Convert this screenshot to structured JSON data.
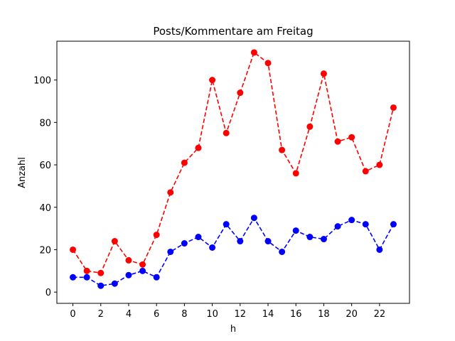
{
  "chart_data": {
    "type": "line",
    "title": "Posts/Kommentare am Freitag",
    "xlabel": "h",
    "ylabel": "Anzahl",
    "xlim": [
      -1.15,
      24.15
    ],
    "ylim": [
      -5.3,
      118.3
    ],
    "xticks": [
      0,
      2,
      4,
      6,
      8,
      10,
      12,
      14,
      16,
      18,
      20,
      22
    ],
    "yticks": [
      0,
      20,
      40,
      60,
      80,
      100
    ],
    "grid": false,
    "x": [
      0,
      1,
      2,
      3,
      4,
      5,
      6,
      7,
      8,
      9,
      10,
      11,
      12,
      13,
      14,
      15,
      16,
      17,
      18,
      19,
      20,
      21,
      22,
      23
    ],
    "series": [
      {
        "color": "#ff0000",
        "linestyle": "dashed",
        "marker": "circle",
        "values": [
          20,
          10,
          9,
          24,
          15,
          13,
          27,
          47,
          61,
          68,
          100,
          75,
          94,
          113,
          108,
          67,
          56,
          78,
          103,
          71,
          73,
          57,
          60,
          87
        ]
      },
      {
        "color": "#0000ff",
        "linestyle": "dashed",
        "marker": "circle",
        "values": [
          7,
          7,
          3,
          4,
          8,
          10,
          7,
          19,
          23,
          26,
          21,
          32,
          24,
          35,
          24,
          19,
          29,
          26,
          25,
          31,
          34,
          32,
          20,
          32
        ]
      }
    ]
  }
}
